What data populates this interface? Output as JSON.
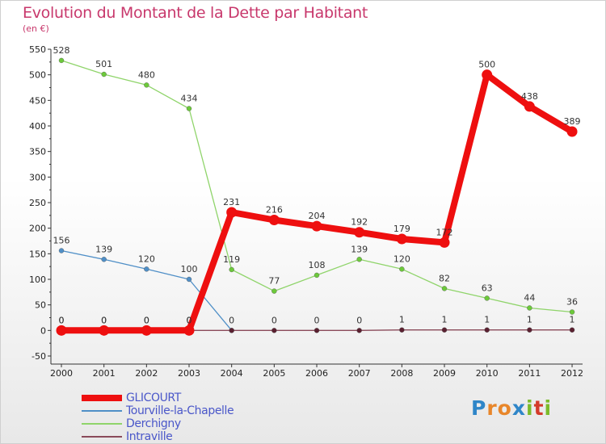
{
  "title": "Evolution du Montant de la Dette par Habitant",
  "subtitle": "(en €)",
  "logo": {
    "text": "Proxiti",
    "letter_colors": [
      "#2f86c8",
      "#e8862a",
      "#e8862a",
      "#2f86c8",
      "#7cbb2a",
      "#d43b2a",
      "#7cbb2a"
    ]
  },
  "chart_data": {
    "type": "line",
    "title": "Evolution du Montant de la Dette par Habitant",
    "subtitle": "(en €)",
    "x": [
      "2000",
      "2001",
      "2002",
      "2003",
      "2004",
      "2005",
      "2006",
      "2007",
      "2008",
      "2009",
      "2010",
      "2011",
      "2012"
    ],
    "ylim": [
      -50,
      550
    ],
    "yticks": [
      "-50",
      "0",
      "50",
      "100",
      "150",
      "200",
      "250",
      "300",
      "350",
      "400",
      "450",
      "500",
      "550"
    ],
    "grid": false,
    "legend_position": "bottom-left",
    "series": [
      {
        "name": "Tourville-la-Chapelle",
        "color": "#4f8fc7",
        "values": [
          156,
          139,
          120,
          100,
          0,
          null,
          null,
          null,
          null,
          null,
          null,
          null,
          null
        ],
        "labels": [
          "156",
          "139",
          "120",
          "100",
          "",
          "",
          "",
          "",
          "",
          "",
          "",
          "",
          ""
        ]
      },
      {
        "name": "Derchigny",
        "color": "#8fd46a",
        "point_color": "#6cc93a",
        "values": [
          528,
          501,
          480,
          434,
          119,
          77,
          108,
          139,
          120,
          82,
          63,
          44,
          36
        ],
        "labels": [
          "528",
          "501",
          "480",
          "434",
          "119",
          "77",
          "108",
          "139",
          "120",
          "82",
          "63",
          "44",
          "36"
        ]
      },
      {
        "name": "Intraville",
        "color": "#8a4a5a",
        "point_color": "#5a2030",
        "values": [
          0,
          0,
          0,
          0,
          0,
          0,
          0,
          0,
          1,
          1,
          1,
          1,
          1
        ],
        "labels": [
          "0",
          "0",
          "0",
          "0",
          "0",
          "0",
          "0",
          "0",
          "1",
          "1",
          "1",
          "1",
          "1"
        ]
      },
      {
        "name": "GLICOURT",
        "color": "#ee0f0f",
        "values": [
          0,
          0,
          0,
          0,
          231,
          216,
          204,
          192,
          179,
          172,
          500,
          438,
          389
        ],
        "labels": [
          "0",
          "0",
          "0",
          "0",
          "231",
          "216",
          "204",
          "192",
          "179",
          "172",
          "500",
          "438",
          "389"
        ]
      }
    ]
  },
  "legend": [
    {
      "name": "GLICOURT",
      "color": "#ee0f0f"
    },
    {
      "name": "Tourville-la-Chapelle",
      "color": "#4f8fc7"
    },
    {
      "name": "Derchigny",
      "color": "#8fd46a"
    },
    {
      "name": "Intraville",
      "color": "#8a4a5a"
    }
  ]
}
